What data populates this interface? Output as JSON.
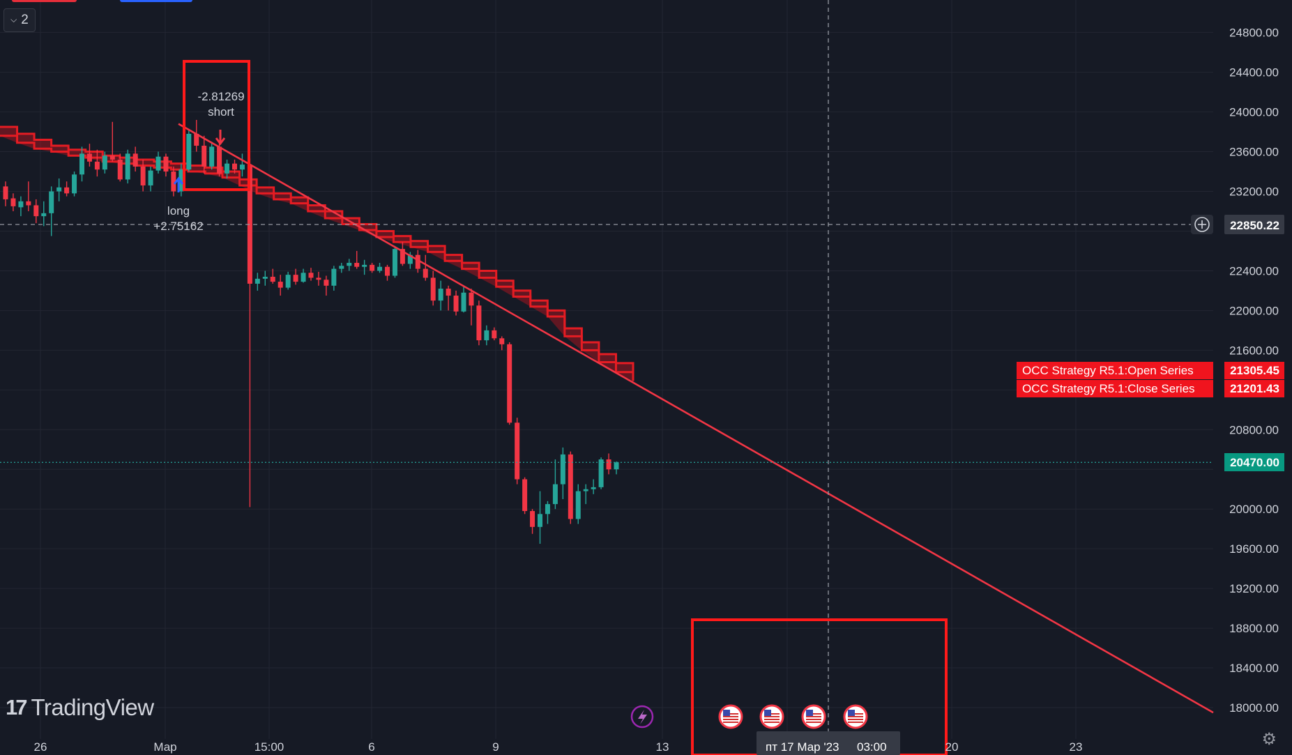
{
  "legend": {
    "count": "2"
  },
  "logo": {
    "text": "TradingView"
  },
  "crosshair": {
    "date_label": "пт 17 Мар '23",
    "time_label": "03:00",
    "price_label": "22850.22"
  },
  "last_price": {
    "value": "20470.00",
    "color": "#089981"
  },
  "price_axis": {
    "ticks": [
      "24800.00",
      "24400.00",
      "24000.00",
      "23600.00",
      "23200.00",
      "22400.00",
      "22000.00",
      "21600.00",
      "20800.00",
      "20000.00",
      "19600.00",
      "19200.00",
      "18800.00",
      "18400.00",
      "18000.00"
    ]
  },
  "time_axis": {
    "ticks": [
      "26",
      "Мар",
      "15:00",
      "6",
      "9",
      "13",
      "20",
      "23"
    ]
  },
  "series_labels": [
    {
      "name": "OCC Strategy R5.1:Open Series",
      "value": "21305.45"
    },
    {
      "name": "OCC Strategy R5.1:Close Series",
      "value": "21201.43"
    }
  ],
  "trade_markers": [
    {
      "label": "short",
      "value": "-2.81269"
    },
    {
      "label": "long",
      "value": "+2.75162"
    }
  ],
  "events": {
    "flags": [
      "us-flag",
      "us-flag",
      "us-flag",
      "us-flag"
    ],
    "lightning": "lightning-icon"
  },
  "colors": {
    "up": "#26a69a",
    "down": "#f23645",
    "band": "#e51c23",
    "trend": "#f23645",
    "highlight": "#ff1a1a",
    "bg": "#161a25",
    "grid": "#232632"
  },
  "chart_data": {
    "type": "candlestick",
    "timeframe": "1h",
    "ylim": [
      17800,
      24960
    ],
    "price_ticks": [
      24800,
      24400,
      24000,
      23600,
      23200,
      22400,
      22000,
      21600,
      20800,
      20000,
      19600,
      19200,
      18800,
      18400,
      18000
    ],
    "candles_ohlc": [
      [
        23250,
        23300,
        23050,
        23120
      ],
      [
        23130,
        23180,
        23000,
        23050
      ],
      [
        23040,
        23150,
        22950,
        23100
      ],
      [
        23100,
        23300,
        23000,
        23060
      ],
      [
        23060,
        23120,
        22880,
        22950
      ],
      [
        22950,
        23100,
        22850,
        22980
      ],
      [
        22980,
        23250,
        22750,
        23200
      ],
      [
        23200,
        23330,
        23100,
        23240
      ],
      [
        23240,
        23300,
        23150,
        23180
      ],
      [
        23180,
        23400,
        23150,
        23370
      ],
      [
        23370,
        23650,
        23300,
        23580
      ],
      [
        23580,
        23680,
        23450,
        23500
      ],
      [
        23500,
        23620,
        23350,
        23420
      ],
      [
        23420,
        23600,
        23380,
        23560
      ],
      [
        23560,
        23900,
        23500,
        23520
      ],
      [
        23520,
        23580,
        23300,
        23320
      ],
      [
        23320,
        23620,
        23280,
        23580
      ],
      [
        23580,
        23650,
        23400,
        23450
      ],
      [
        23450,
        23520,
        23200,
        23260
      ],
      [
        23260,
        23450,
        23200,
        23410
      ],
      [
        23410,
        23600,
        23380,
        23550
      ],
      [
        23550,
        23580,
        23350,
        23400
      ],
      [
        23400,
        23450,
        23150,
        23200
      ],
      [
        23200,
        23480,
        23150,
        23420
      ],
      [
        23420,
        23820,
        23400,
        23780
      ],
      [
        23780,
        23920,
        23600,
        23660
      ],
      [
        23660,
        23760,
        23380,
        23450
      ],
      [
        23450,
        23700,
        23420,
        23650
      ],
      [
        23650,
        23700,
        23350,
        23380
      ],
      [
        23380,
        23520,
        23330,
        23480
      ],
      [
        23480,
        23520,
        23380,
        23420
      ],
      [
        23420,
        23580,
        23350,
        23470
      ],
      [
        23460,
        23530,
        20020,
        22270
      ],
      [
        22270,
        22380,
        22200,
        22320
      ],
      [
        22320,
        22400,
        22250,
        22340
      ],
      [
        22340,
        22420,
        22270,
        22290
      ],
      [
        22290,
        22360,
        22150,
        22230
      ],
      [
        22230,
        22390,
        22210,
        22360
      ],
      [
        22360,
        22420,
        22260,
        22290
      ],
      [
        22290,
        22420,
        22280,
        22380
      ],
      [
        22380,
        22430,
        22300,
        22330
      ],
      [
        22330,
        22390,
        22250,
        22310
      ],
      [
        22310,
        22350,
        22150,
        22250
      ],
      [
        22250,
        22450,
        22200,
        22420
      ],
      [
        22420,
        22480,
        22380,
        22450
      ],
      [
        22450,
        22520,
        22400,
        22480
      ],
      [
        22480,
        22600,
        22420,
        22440
      ],
      [
        22440,
        22510,
        22360,
        22460
      ],
      [
        22460,
        22480,
        22380,
        22400
      ],
      [
        22400,
        22480,
        22380,
        22440
      ],
      [
        22440,
        22460,
        22300,
        22350
      ],
      [
        22350,
        22650,
        22330,
        22620
      ],
      [
        22620,
        22690,
        22450,
        22470
      ],
      [
        22470,
        22590,
        22420,
        22560
      ],
      [
        22560,
        22610,
        22380,
        22420
      ],
      [
        22420,
        22560,
        22300,
        22330
      ],
      [
        22330,
        22400,
        22050,
        22100
      ],
      [
        22100,
        22300,
        22000,
        22220
      ],
      [
        22220,
        22250,
        22000,
        22150
      ],
      [
        22150,
        22200,
        21950,
        21990
      ],
      [
        21990,
        22250,
        21980,
        22180
      ],
      [
        22180,
        22220,
        21850,
        22050
      ],
      [
        22050,
        22100,
        21650,
        21700
      ],
      [
        21700,
        21850,
        21650,
        21800
      ],
      [
        21800,
        21830,
        21700,
        21720
      ],
      [
        21720,
        21740,
        21600,
        21660
      ],
      [
        21660,
        21680,
        20850,
        20870
      ],
      [
        20870,
        20920,
        20250,
        20300
      ],
      [
        20300,
        20320,
        19950,
        19980
      ],
      [
        19980,
        20000,
        19750,
        19820
      ],
      [
        19820,
        20180,
        19650,
        19950
      ],
      [
        19950,
        20080,
        19850,
        20050
      ],
      [
        20050,
        20500,
        20000,
        20250
      ],
      [
        20250,
        20620,
        20100,
        20550
      ],
      [
        20550,
        20580,
        19850,
        19900
      ],
      [
        19900,
        20250,
        19850,
        20180
      ],
      [
        20180,
        20250,
        20050,
        20200
      ],
      [
        20200,
        20300,
        20150,
        20220
      ],
      [
        20220,
        20520,
        20200,
        20500
      ],
      [
        20500,
        20560,
        20350,
        20400
      ],
      [
        20400,
        20480,
        20350,
        20470
      ]
    ],
    "band_upper": [
      [
        23850,
        23780,
        23720,
        23660,
        23620,
        23600,
        23560,
        23540,
        23520,
        23500,
        23480,
        23460,
        23440,
        23400,
        23320,
        23240,
        23180,
        23140,
        23060,
        23000,
        22930,
        22870,
        22800,
        22750,
        22700,
        22650,
        22560,
        22480,
        22400,
        22300,
        22200,
        22100,
        22000,
        21820,
        21680,
        21560,
        21470,
        21380
      ]
    ],
    "band_lower": [
      [
        23760,
        23690,
        23630,
        23600,
        23560,
        23540,
        23500,
        23480,
        23460,
        23440,
        23420,
        23400,
        23380,
        23340,
        23260,
        23180,
        23120,
        23080,
        23000,
        22930,
        22870,
        22810,
        22740,
        22690,
        22640,
        22590,
        22500,
        22420,
        22330,
        22240,
        22140,
        22040,
        21940,
        21740,
        21600,
        21480,
        21380,
        21290
      ]
    ],
    "trendline": {
      "x": [
        "01 Mar 03:00",
        "20 Mar 18:00"
      ],
      "y": [
        23880,
        17950
      ]
    },
    "open_series_last": 21305.45,
    "close_series_last": 21201.43,
    "last_close": 20470.0,
    "crosshair_price": 22850.22
  }
}
